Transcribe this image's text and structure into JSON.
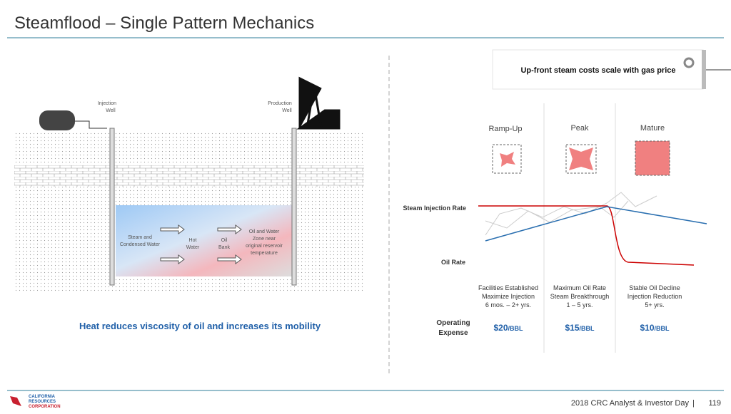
{
  "header": {
    "title": "Steamflood – Single Pattern Mechanics"
  },
  "callout": "Up-front steam costs scale with gas price",
  "diagram": {
    "injection_well": [
      "Injection",
      "Well"
    ],
    "production_well": [
      "Production",
      "Well"
    ],
    "steam_zone": [
      "Steam and",
      "Condensed Water"
    ],
    "hot_water": [
      "Hot",
      "Water"
    ],
    "oil_bank": [
      "Oil",
      "Bank"
    ],
    "oil_water_zone": [
      "Oil and Water",
      "Zone near",
      "original reservoir",
      "temperature"
    ],
    "caption": "Heat reduces viscosity of oil and increases its mobility"
  },
  "lifecycle": {
    "stages": [
      "Ramp-Up",
      "Peak",
      "Mature"
    ],
    "steam_label": "Steam Injection Rate",
    "oil_label": "Oil Rate",
    "descriptions": [
      [
        "Facilities Established",
        "Maximize Injection",
        "6 mos. – 2+ yrs."
      ],
      [
        "Maximum Oil Rate",
        "Steam Breakthrough",
        "1 – 5 yrs."
      ],
      [
        "Stable Oil Decline",
        "Injection Reduction",
        "5+ yrs."
      ]
    ],
    "opex_label": [
      "Operating",
      "Expense"
    ],
    "opex": [
      {
        "price": "$20",
        "unit": "/BBL"
      },
      {
        "price": "$15",
        "unit": "/BBL"
      },
      {
        "price": "$10",
        "unit": "/BBL"
      }
    ]
  },
  "footer": {
    "logo": [
      "CALIFORNIA",
      "RESOURCES",
      "CORPORATION"
    ],
    "event": "2018 CRC Analyst & Investor Day",
    "page": "119"
  }
}
